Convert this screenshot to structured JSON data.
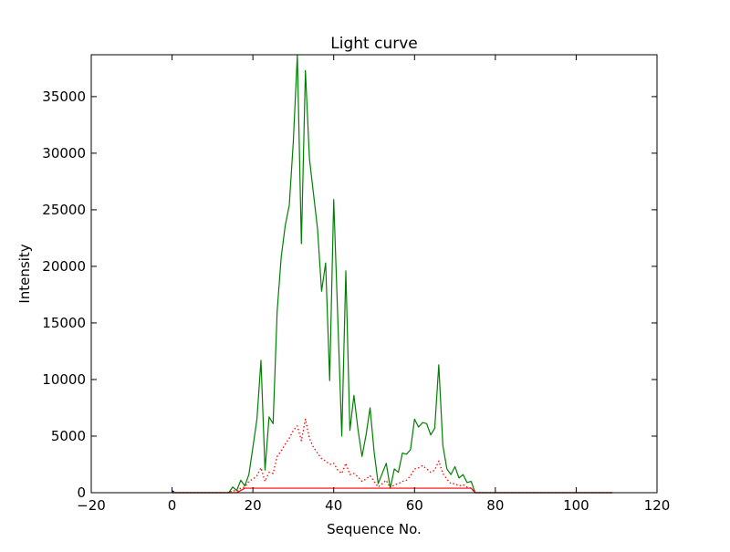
{
  "chart_data": {
    "type": "line",
    "title": "Light curve",
    "xlabel": "Sequence No.",
    "ylabel": "Intensity",
    "xlim": [
      -20,
      120
    ],
    "ylim": [
      0,
      38700
    ],
    "xticks": [
      -20,
      0,
      20,
      40,
      60,
      80,
      100,
      120
    ],
    "xtick_labels": [
      "−20",
      "0",
      "20",
      "40",
      "60",
      "80",
      "100",
      "120"
    ],
    "yticks": [
      0,
      5000,
      10000,
      15000,
      20000,
      25000,
      30000,
      35000
    ],
    "ytick_labels": [
      "0",
      "5000",
      "10000",
      "15000",
      "20000",
      "25000",
      "30000",
      "35000"
    ],
    "grid": false,
    "series": [
      {
        "color": "#008000",
        "style": "solid",
        "x": [
          0,
          1,
          2,
          3,
          4,
          5,
          6,
          7,
          8,
          9,
          10,
          11,
          12,
          13,
          14,
          15,
          16,
          17,
          18,
          19,
          20,
          21,
          22,
          23,
          24,
          25,
          26,
          27,
          28,
          29,
          30,
          31,
          32,
          33,
          34,
          35,
          36,
          37,
          38,
          39,
          40,
          41,
          42,
          43,
          44,
          45,
          46,
          47,
          48,
          49,
          50,
          51,
          52,
          53,
          54,
          55,
          56,
          57,
          58,
          59,
          60,
          61,
          62,
          63,
          64,
          65,
          66,
          67,
          68,
          69,
          70,
          71,
          72,
          73,
          74,
          75,
          76,
          77,
          78,
          79,
          80,
          81,
          82,
          83,
          84,
          85,
          86,
          87,
          88,
          89,
          90,
          91,
          92,
          93,
          94,
          95,
          96,
          97,
          98,
          99,
          100,
          101,
          102,
          103,
          104,
          105,
          106,
          107,
          108,
          109
        ],
        "y": [
          0,
          0,
          0,
          0,
          0,
          0,
          0,
          0,
          0,
          0,
          0,
          0,
          0,
          0,
          0,
          500,
          200,
          1100,
          600,
          1600,
          4000,
          6500,
          11700,
          2000,
          6700,
          6100,
          16000,
          20800,
          23600,
          25400,
          31000,
          38700,
          22000,
          37300,
          29500,
          26400,
          23300,
          17800,
          20300,
          9900,
          25900,
          15500,
          5000,
          19600,
          5500,
          8600,
          5600,
          3200,
          5100,
          7500,
          3600,
          800,
          1700,
          2600,
          400,
          2100,
          1800,
          3500,
          3400,
          3800,
          6500,
          5800,
          6200,
          6100,
          5100,
          5700,
          11300,
          4200,
          2100,
          1600,
          2300,
          1300,
          1600,
          900,
          1000,
          0,
          0,
          0,
          0,
          0,
          0,
          0,
          0,
          0,
          0,
          0,
          0,
          0,
          0,
          0,
          0,
          0,
          0,
          0,
          0,
          0,
          0,
          0,
          0,
          0,
          0,
          0,
          0,
          0,
          0,
          0,
          0,
          0,
          0,
          0
        ]
      },
      {
        "color": "#ff0000",
        "style": "dotted",
        "x": [
          0,
          1,
          2,
          3,
          4,
          5,
          6,
          7,
          8,
          9,
          10,
          11,
          12,
          13,
          14,
          15,
          16,
          17,
          18,
          19,
          20,
          21,
          22,
          23,
          24,
          25,
          26,
          27,
          28,
          29,
          30,
          31,
          32,
          33,
          34,
          35,
          36,
          37,
          38,
          39,
          40,
          41,
          42,
          43,
          44,
          45,
          46,
          47,
          48,
          49,
          50,
          51,
          52,
          53,
          54,
          55,
          56,
          57,
          58,
          59,
          60,
          61,
          62,
          63,
          64,
          65,
          66,
          67,
          68,
          69,
          70,
          71,
          72,
          73,
          74,
          75,
          76,
          77,
          78,
          79,
          80,
          81,
          82,
          83,
          84,
          85,
          86,
          87,
          88,
          89,
          90,
          91,
          92,
          93,
          94,
          95,
          96,
          97,
          98,
          99,
          100,
          101,
          102,
          103,
          104,
          105,
          106,
          107,
          108,
          109
        ],
        "y": [
          0,
          0,
          0,
          0,
          0,
          0,
          0,
          0,
          0,
          0,
          0,
          0,
          0,
          0,
          0,
          200,
          100,
          400,
          500,
          1000,
          1200,
          1500,
          2200,
          1000,
          1800,
          1700,
          3200,
          3700,
          4300,
          4800,
          5500,
          5900,
          4600,
          6500,
          4800,
          4000,
          3500,
          3000,
          2800,
          2500,
          2600,
          2000,
          1700,
          2600,
          1600,
          1700,
          1400,
          1000,
          1200,
          1500,
          1000,
          500,
          800,
          1100,
          400,
          700,
          800,
          1000,
          1100,
          1500,
          2100,
          2200,
          2400,
          2100,
          1800,
          2000,
          2800,
          1700,
          1200,
          800,
          800,
          600,
          700,
          500,
          400,
          0,
          0,
          0,
          0,
          0,
          0,
          0,
          0,
          0,
          0,
          0,
          0,
          0,
          0,
          0,
          0,
          0,
          0,
          0,
          0,
          0,
          0,
          0,
          0,
          0,
          0,
          0,
          0,
          0,
          0,
          0,
          0,
          0,
          0,
          0
        ]
      },
      {
        "color": "#ff0000",
        "style": "solid",
        "x": [
          0,
          16,
          18,
          74,
          75,
          109
        ],
        "y": [
          0,
          0,
          400,
          400,
          0,
          0
        ]
      },
      {
        "color": "#0000ff",
        "style": "solid",
        "x": [
          0,
          0.5
        ],
        "y": [
          150,
          100
        ]
      }
    ]
  }
}
